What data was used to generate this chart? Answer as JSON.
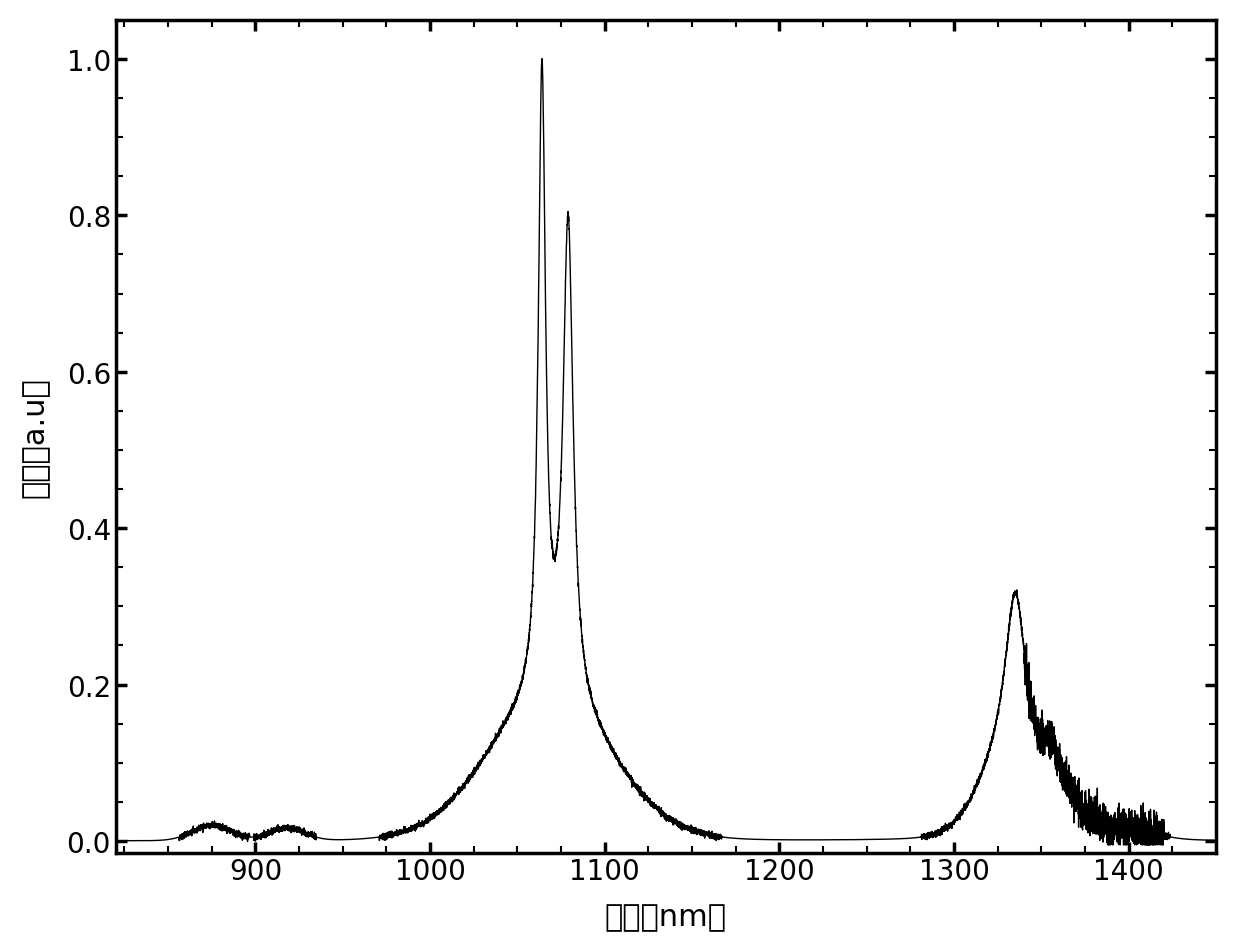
{
  "xlabel": "波长（nm）",
  "ylabel": "强度（a.u）",
  "xlim": [
    820,
    1450
  ],
  "ylim": [
    -0.015,
    1.05
  ],
  "xticks": [
    900,
    1000,
    1100,
    1200,
    1300,
    1400
  ],
  "yticks": [
    0.0,
    0.2,
    0.4,
    0.6,
    0.8,
    1.0
  ],
  "line_color": "#000000",
  "background_color": "#ffffff",
  "xlabel_fontsize": 22,
  "ylabel_fontsize": 22,
  "tick_fontsize": 20
}
